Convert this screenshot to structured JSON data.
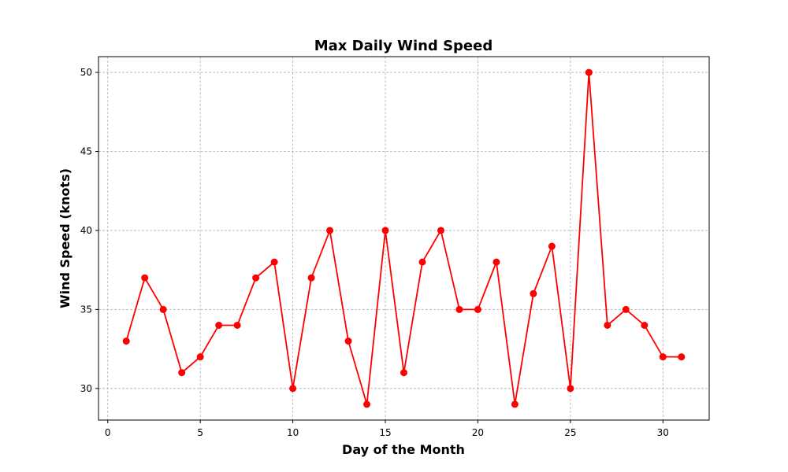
{
  "chart_data": {
    "type": "line",
    "title": "Max Daily Wind Speed",
    "xlabel": "Day of the Month",
    "ylabel": "Wind Speed (knots)",
    "xlim": [
      -0.5,
      32.5
    ],
    "ylim": [
      28,
      51
    ],
    "xticks": [
      0,
      5,
      10,
      15,
      20,
      25,
      30
    ],
    "yticks": [
      30,
      35,
      40,
      45,
      50
    ],
    "grid": true,
    "color": "#ff0000",
    "marker": "circle",
    "x": [
      1,
      2,
      3,
      4,
      5,
      6,
      7,
      8,
      9,
      10,
      11,
      12,
      13,
      14,
      15,
      16,
      17,
      18,
      19,
      20,
      21,
      22,
      23,
      24,
      25,
      26,
      27,
      28,
      29,
      30,
      31
    ],
    "y": [
      33,
      37,
      35,
      31,
      32,
      34,
      34,
      37,
      38,
      30,
      37,
      40,
      33,
      29,
      40,
      31,
      38,
      40,
      35,
      35,
      38,
      29,
      36,
      39,
      30,
      50,
      34,
      35,
      34,
      32,
      32
    ]
  }
}
